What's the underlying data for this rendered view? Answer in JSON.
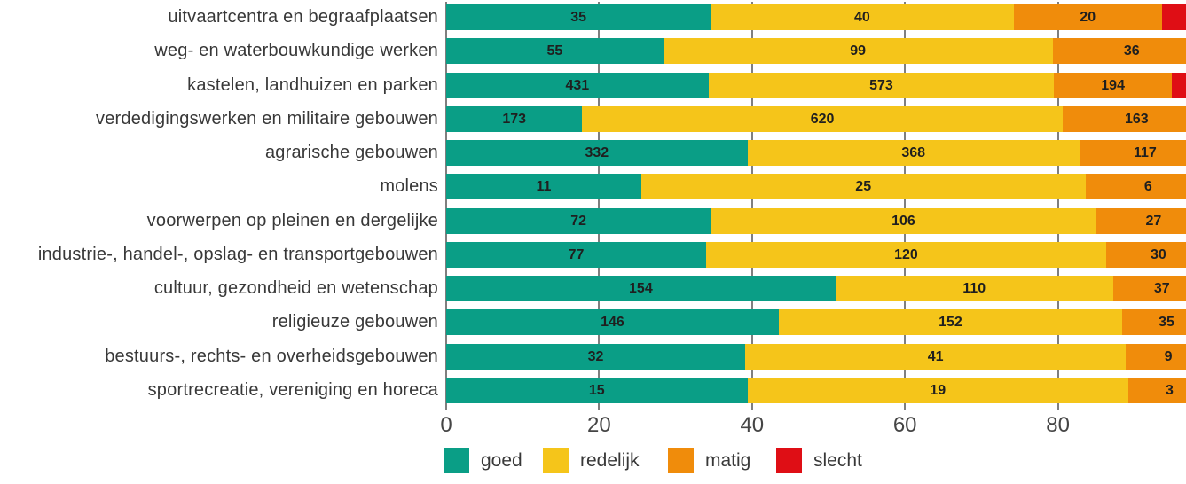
{
  "chart_data": {
    "type": "bar",
    "orientation": "horizontal",
    "stacked": true,
    "title": "",
    "xlabel": "",
    "ylabel": "",
    "axis_unit": "percent",
    "xlim": [
      0,
      100
    ],
    "x_ticks": [
      0,
      20,
      40,
      60,
      80
    ],
    "grid": true,
    "legend_position": "bottom",
    "legend": [
      {
        "key": "goed",
        "label": "goed",
        "color": "#0a9e86"
      },
      {
        "key": "redelijk",
        "label": "redelijk",
        "color": "#f5c51a"
      },
      {
        "key": "matig",
        "label": "matig",
        "color": "#f08c0b"
      },
      {
        "key": "slecht",
        "label": "slecht",
        "color": "#df0e15"
      }
    ],
    "rows": [
      {
        "label": "uitvaartcentra en begraafplaatsen",
        "segments": [
          {
            "key": "goed",
            "count": "35",
            "pct": 34.6
          },
          {
            "key": "redelijk",
            "count": "40",
            "pct": 39.6
          },
          {
            "key": "matig",
            "count": "20",
            "pct": 19.4
          },
          {
            "key": "slecht",
            "count": "",
            "pct": 6.4
          }
        ]
      },
      {
        "label": "weg- en waterbouwkundige werken",
        "segments": [
          {
            "key": "goed",
            "count": "55",
            "pct": 28.4
          },
          {
            "key": "redelijk",
            "count": "99",
            "pct": 50.9
          },
          {
            "key": "matig",
            "count": "36",
            "pct": 20.7
          }
        ]
      },
      {
        "label": "kastelen, landhuizen en parken",
        "segments": [
          {
            "key": "goed",
            "count": "431",
            "pct": 34.3
          },
          {
            "key": "redelijk",
            "count": "573",
            "pct": 45.2
          },
          {
            "key": "matig",
            "count": "194",
            "pct": 15.4
          },
          {
            "key": "slecht",
            "count": "",
            "pct": 5.1
          }
        ]
      },
      {
        "label": "verdedigingswerken en militaire gebouwen",
        "segments": [
          {
            "key": "goed",
            "count": "173",
            "pct": 17.8
          },
          {
            "key": "redelijk",
            "count": "620",
            "pct": 62.8
          },
          {
            "key": "matig",
            "count": "163",
            "pct": 19.4
          }
        ]
      },
      {
        "label": "agrarische gebouwen",
        "segments": [
          {
            "key": "goed",
            "count": "332",
            "pct": 39.4
          },
          {
            "key": "redelijk",
            "count": "368",
            "pct": 43.4
          },
          {
            "key": "matig",
            "count": "117",
            "pct": 17.2
          }
        ]
      },
      {
        "label": "molens",
        "segments": [
          {
            "key": "goed",
            "count": "11",
            "pct": 25.5
          },
          {
            "key": "redelijk",
            "count": "25",
            "pct": 58.1
          },
          {
            "key": "matig",
            "count": "6",
            "pct": 16.4
          }
        ]
      },
      {
        "label": "voorwerpen op pleinen en dergelijke",
        "segments": [
          {
            "key": "goed",
            "count": "72",
            "pct": 34.6
          },
          {
            "key": "redelijk",
            "count": "106",
            "pct": 50.4
          },
          {
            "key": "matig",
            "count": "27",
            "pct": 15.0
          }
        ]
      },
      {
        "label": "industrie-, handel-, opslag- en transportgebouwen",
        "segments": [
          {
            "key": "goed",
            "count": "77",
            "pct": 34.0
          },
          {
            "key": "redelijk",
            "count": "120",
            "pct": 52.3
          },
          {
            "key": "matig",
            "count": "30",
            "pct": 13.7
          }
        ]
      },
      {
        "label": "cultuur, gezondheid en wetenschap",
        "segments": [
          {
            "key": "goed",
            "count": "154",
            "pct": 50.9
          },
          {
            "key": "redelijk",
            "count": "110",
            "pct": 36.3
          },
          {
            "key": "matig",
            "count": "37",
            "pct": 12.8
          }
        ]
      },
      {
        "label": "religieuze gebouwen",
        "segments": [
          {
            "key": "goed",
            "count": "146",
            "pct": 43.5
          },
          {
            "key": "redelijk",
            "count": "152",
            "pct": 44.9
          },
          {
            "key": "matig",
            "count": "35",
            "pct": 11.6
          }
        ]
      },
      {
        "label": "bestuurs-, rechts- en overheidsgebouwen",
        "segments": [
          {
            "key": "goed",
            "count": "32",
            "pct": 39.1
          },
          {
            "key": "redelijk",
            "count": "41",
            "pct": 49.8
          },
          {
            "key": "matig",
            "count": "9",
            "pct": 11.1
          }
        ]
      },
      {
        "label": "sportrecreatie, vereniging en horeca",
        "segments": [
          {
            "key": "goed",
            "count": "15",
            "pct": 39.4
          },
          {
            "key": "redelijk",
            "count": "19",
            "pct": 49.8
          },
          {
            "key": "matig",
            "count": "3",
            "pct": 10.8
          }
        ]
      }
    ]
  }
}
